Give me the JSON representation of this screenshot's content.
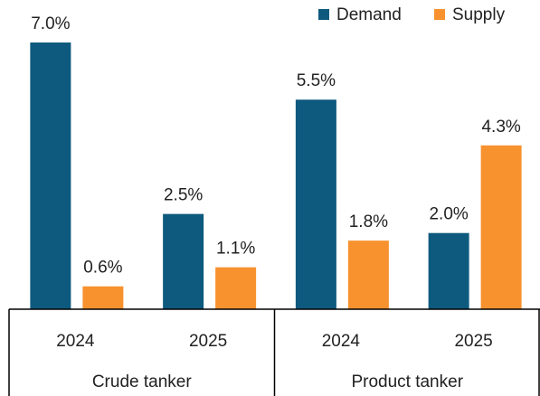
{
  "chart_data": {
    "type": "bar",
    "categories": [
      "2024",
      "2025",
      "2024",
      "2025"
    ],
    "groups": [
      "Crude tanker",
      "Product tanker"
    ],
    "series": [
      {
        "name": "Demand",
        "color": "#0e5a7e",
        "values": [
          7.0,
          2.5,
          5.5,
          2.0
        ],
        "value_labels": [
          "7.0%",
          "2.5%",
          "5.5%",
          "2.0%"
        ]
      },
      {
        "name": "Supply",
        "color": "#f7922f",
        "values": [
          0.6,
          1.1,
          1.8,
          4.3
        ],
        "value_labels": [
          "0.6%",
          "1.1%",
          "1.8%",
          "4.3%"
        ]
      }
    ],
    "legend": "top-right"
  }
}
